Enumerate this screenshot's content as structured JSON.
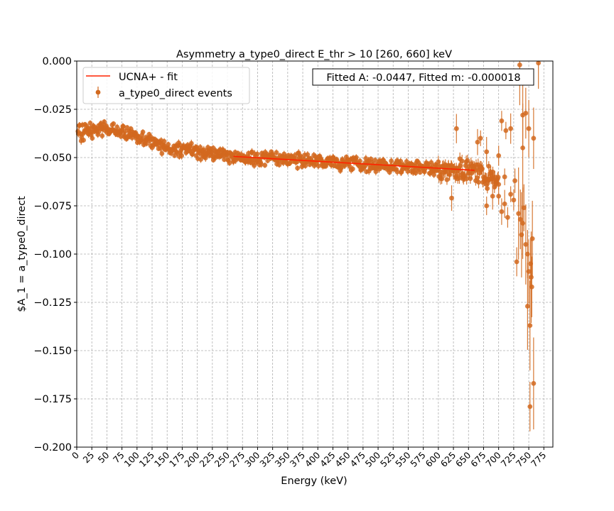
{
  "chart_data": {
    "type": "scatter",
    "title": "Asymmetry a_type0_direct E_thr > 10 [260, 660] keV",
    "xlabel": "Energy (keV)",
    "ylabel": "$A_1 = a_type0_direct",
    "xlim": [
      0,
      790
    ],
    "ylim": [
      -0.2,
      0.0
    ],
    "xticks": [
      0,
      25,
      50,
      75,
      100,
      125,
      150,
      175,
      200,
      225,
      250,
      275,
      300,
      325,
      350,
      375,
      400,
      425,
      450,
      475,
      500,
      525,
      550,
      575,
      600,
      625,
      650,
      675,
      700,
      725,
      750,
      775
    ],
    "yticks": [
      0.0,
      -0.025,
      -0.05,
      -0.075,
      -0.1,
      -0.125,
      -0.15,
      -0.175,
      -0.2
    ],
    "ytick_labels": [
      "0.000",
      "−0.025",
      "−0.050",
      "−0.075",
      "−0.100",
      "−0.125",
      "−0.150",
      "−0.175",
      "−0.200"
    ],
    "grid": true,
    "legend_position": "top-left",
    "annotation": "Fitted A: -0.0447, Fitted m: -0.000018",
    "series": [
      {
        "name": "UCNA+ - fit",
        "kind": "line",
        "color": "#ff2200",
        "x": [
          260,
          660
        ],
        "y": [
          -0.0494,
          -0.0566
        ]
      },
      {
        "name": "a_type0_direct events",
        "kind": "errorbar-scatter",
        "color": "#d2691e",
        "trend": {
          "x": [
            0,
            60,
            150,
            260,
            400,
            500,
            600,
            660,
            700,
            740
          ],
          "y": [
            -0.037,
            -0.035,
            -0.045,
            -0.0495,
            -0.052,
            -0.054,
            -0.056,
            -0.057,
            -0.062,
            -0.075
          ]
        },
        "outliers": [
          {
            "x": 735,
            "y": -0.002
          },
          {
            "x": 766,
            "y": -0.001
          },
          {
            "x": 740,
            "y": -0.028
          },
          {
            "x": 745,
            "y": -0.027
          },
          {
            "x": 750,
            "y": -0.035
          },
          {
            "x": 758,
            "y": -0.04
          },
          {
            "x": 745,
            "y": -0.095
          },
          {
            "x": 748,
            "y": -0.1
          },
          {
            "x": 750,
            "y": -0.109
          },
          {
            "x": 753,
            "y": -0.105
          },
          {
            "x": 748,
            "y": -0.127
          },
          {
            "x": 752,
            "y": -0.137
          },
          {
            "x": 755,
            "y": -0.117
          },
          {
            "x": 758,
            "y": -0.167
          },
          {
            "x": 752,
            "y": -0.179
          },
          {
            "x": 754,
            "y": -0.112
          },
          {
            "x": 756,
            "y": -0.092
          },
          {
            "x": 740,
            "y": -0.084
          },
          {
            "x": 738,
            "y": -0.09
          },
          {
            "x": 736,
            "y": -0.082
          },
          {
            "x": 733,
            "y": -0.079
          },
          {
            "x": 730,
            "y": -0.104
          },
          {
            "x": 742,
            "y": -0.076
          },
          {
            "x": 727,
            "y": -0.062
          },
          {
            "x": 725,
            "y": -0.072
          },
          {
            "x": 720,
            "y": -0.069
          },
          {
            "x": 715,
            "y": -0.081
          },
          {
            "x": 710,
            "y": -0.074
          },
          {
            "x": 705,
            "y": -0.078
          },
          {
            "x": 700,
            "y": -0.07
          },
          {
            "x": 690,
            "y": -0.07
          },
          {
            "x": 680,
            "y": -0.075
          },
          {
            "x": 720,
            "y": -0.035
          },
          {
            "x": 712,
            "y": -0.036
          },
          {
            "x": 705,
            "y": -0.031
          },
          {
            "x": 740,
            "y": -0.045
          },
          {
            "x": 630,
            "y": -0.035
          },
          {
            "x": 622,
            "y": -0.071
          },
          {
            "x": 665,
            "y": -0.042
          },
          {
            "x": 670,
            "y": -0.04
          },
          {
            "x": 680,
            "y": -0.047
          },
          {
            "x": 700,
            "y": -0.049
          },
          {
            "x": 710,
            "y": -0.06
          }
        ]
      }
    ]
  }
}
